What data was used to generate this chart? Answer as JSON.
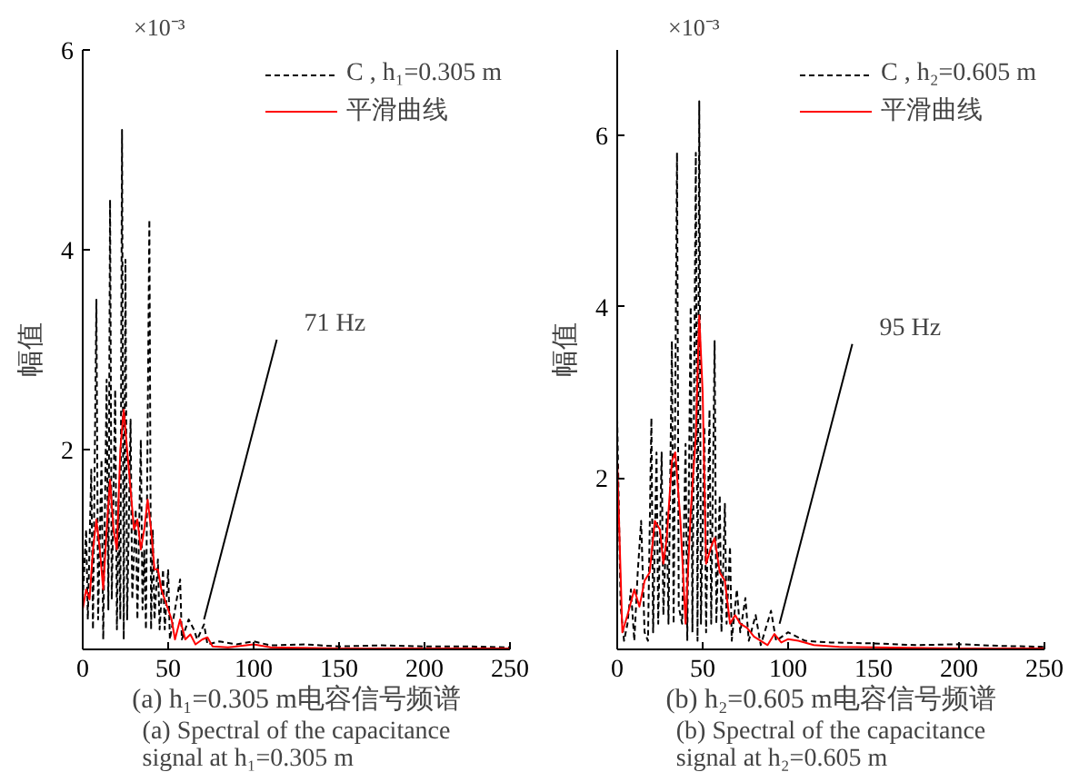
{
  "chart_data": [
    {
      "type": "line",
      "title": "(a) h₁=0.305 m电容信号频谱",
      "subtitle": "(a) Spectral of the capacitance signal at h₁=0.305 m",
      "ylabel": "幅值",
      "xlim": [
        0,
        250
      ],
      "xticks": [
        0,
        50,
        100,
        150,
        200,
        250
      ],
      "ylim": [
        0,
        6
      ],
      "yticks": [
        2,
        4,
        6
      ],
      "grid": false,
      "legend": "top right",
      "annotations": [
        "×10⁻³",
        {
          "text": "71 Hz",
          "x": 71,
          "y": 0.3
        }
      ],
      "series": [
        {
          "name": "C , h₁=0.305 m",
          "color": "#000000",
          "line_style": "dashed",
          "x": [
            0,
            2,
            3,
            5,
            6,
            8,
            9,
            11,
            12,
            14,
            15,
            16,
            17,
            19,
            20,
            21,
            22,
            23,
            24,
            25,
            26,
            28,
            29,
            31,
            32,
            34,
            35,
            36,
            37,
            39,
            40,
            41,
            42,
            44,
            45,
            47,
            48,
            50,
            51,
            55,
            57,
            58,
            62,
            65,
            67,
            71,
            73,
            80,
            90,
            100,
            110,
            130,
            150,
            175,
            200,
            225,
            250
          ],
          "values": [
            0.5,
            1.2,
            0.3,
            1.8,
            0.2,
            3.5,
            0.3,
            1.9,
            0.1,
            2.7,
            0.4,
            4.5,
            0.5,
            2.6,
            0.2,
            1.5,
            0.3,
            5.2,
            0.1,
            3.9,
            0.3,
            2.3,
            0.5,
            1.4,
            0.3,
            2.1,
            0.4,
            1.0,
            0.2,
            4.3,
            0.2,
            1.2,
            0.3,
            0.9,
            0.2,
            0.8,
            0.2,
            0.8,
            0.1,
            0.5,
            0.7,
            0.1,
            0.3,
            0.2,
            0.1,
            0.25,
            0.05,
            0.08,
            0.05,
            0.08,
            0.04,
            0.05,
            0.03,
            0.04,
            0.03,
            0.03,
            0.02
          ]
        },
        {
          "name": "平滑曲线",
          "color": "#ff0000",
          "line_style": "solid",
          "x": [
            0,
            2,
            4,
            6,
            8,
            10,
            12,
            14,
            16,
            18,
            20,
            22,
            24,
            26,
            28,
            30,
            32,
            34,
            36,
            38,
            40,
            42,
            44,
            46,
            48,
            50,
            52,
            54,
            57,
            60,
            63,
            66,
            70,
            73,
            76,
            85,
            100,
            110,
            150,
            200,
            250
          ],
          "values": [
            0.4,
            0.6,
            0.5,
            1.0,
            1.3,
            1.0,
            0.6,
            1.2,
            1.7,
            1.2,
            1.0,
            2.0,
            2.4,
            2.0,
            1.6,
            1.2,
            1.3,
            1.0,
            1.2,
            1.5,
            1.2,
            0.8,
            0.8,
            0.6,
            0.5,
            0.4,
            0.3,
            0.1,
            0.3,
            0.1,
            0.15,
            0.05,
            0.1,
            0.12,
            0.03,
            0.02,
            0.05,
            0.02,
            0.01,
            0.01,
            0.01
          ]
        }
      ]
    },
    {
      "type": "line",
      "title": "(b) h₂=0.605 m电容信号频谱",
      "subtitle": "(b) Spectral of the capacitance signal at h₂=0.605 m",
      "ylabel": "幅值",
      "xlim": [
        0,
        250
      ],
      "xticks": [
        0,
        50,
        100,
        150,
        200,
        250
      ],
      "ylim": [
        0,
        7
      ],
      "yticks": [
        2,
        4,
        6
      ],
      "grid": false,
      "legend": "top right",
      "annotations": [
        "×10⁻³",
        {
          "text": "95 Hz",
          "x": 95,
          "y": 0.3
        }
      ],
      "series": [
        {
          "name": "C , h₂=0.605 m",
          "color": "#000000",
          "line_style": "dashed",
          "x": [
            0,
            2,
            4,
            6,
            8,
            10,
            12,
            14,
            16,
            18,
            20,
            21,
            23,
            24,
            26,
            27,
            29,
            30,
            32,
            33,
            35,
            36,
            38,
            40,
            41,
            43,
            44,
            46,
            47,
            48,
            49,
            51,
            52,
            54,
            55,
            57,
            58,
            60,
            61,
            63,
            64,
            66,
            67,
            70,
            72,
            75,
            77,
            81,
            84,
            90,
            93,
            100,
            110,
            125,
            150,
            175,
            200,
            225,
            250
          ],
          "values": [
            2.7,
            0.5,
            0.1,
            0.3,
            0.7,
            0.1,
            0.9,
            1.5,
            0.2,
            0.1,
            2.7,
            0.2,
            2.3,
            0.3,
            2.3,
            0.4,
            1.6,
            0.3,
            3.6,
            0.3,
            5.8,
            0.5,
            0.3,
            2.4,
            0.1,
            4.0,
            0.2,
            5.8,
            0.1,
            6.4,
            0.3,
            2.6,
            0.2,
            2.8,
            0.3,
            3.6,
            0.3,
            1.8,
            0.2,
            1.7,
            0.3,
            1.2,
            0.1,
            0.7,
            0.2,
            0.6,
            0.1,
            0.4,
            0.05,
            0.45,
            0.1,
            0.2,
            0.1,
            0.08,
            0.07,
            0.05,
            0.06,
            0.04,
            0.03
          ]
        },
        {
          "name": "平滑曲线",
          "color": "#ff0000",
          "line_style": "solid",
          "x": [
            0,
            3,
            6,
            10,
            13,
            16,
            19,
            22,
            25,
            27,
            29,
            32,
            34,
            37,
            40,
            43,
            46,
            48,
            50,
            52,
            55,
            57,
            60,
            63,
            66,
            69,
            72,
            76,
            80,
            84,
            88,
            92,
            96,
            100,
            106,
            115,
            130,
            160,
            200,
            250
          ],
          "values": [
            2.2,
            0.2,
            0.4,
            0.7,
            0.5,
            0.8,
            0.9,
            1.5,
            1.4,
            1.0,
            1.3,
            2.2,
            2.3,
            1.5,
            0.3,
            1.6,
            2.5,
            3.9,
            3.0,
            1.0,
            1.2,
            1.3,
            0.9,
            0.8,
            0.3,
            0.4,
            0.3,
            0.25,
            0.15,
            0.1,
            0.05,
            0.18,
            0.08,
            0.12,
            0.1,
            0.05,
            0.03,
            0.02,
            0.01,
            0.01
          ]
        }
      ]
    }
  ]
}
